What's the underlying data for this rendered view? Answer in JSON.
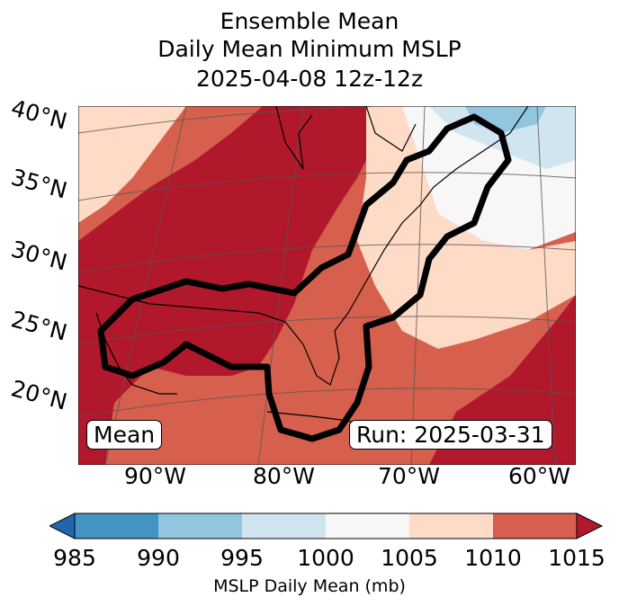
{
  "title": {
    "line1": "Ensemble Mean",
    "line2": "Daily Mean Minimum MSLP",
    "line3": "2025-04-08 12z-12z"
  },
  "map": {
    "lat_labels": [
      "40°N",
      "35°N",
      "30°N",
      "25°N",
      "20°N"
    ],
    "lon_labels": [
      "90°W",
      "80°W",
      "70°W",
      "60°W"
    ],
    "mean_label": "Mean",
    "run_label": "Run: 2025-03-31"
  },
  "colorbar": {
    "ticks": [
      "985",
      "990",
      "995",
      "1000",
      "1005",
      "1010",
      "1015"
    ],
    "label": "MSLP Daily Mean (mb)",
    "colors": [
      "#2166ac",
      "#4393c3",
      "#92c5de",
      "#d1e5f0",
      "#f7f7f7",
      "#fddbc7",
      "#d6604d",
      "#b2182b"
    ]
  }
}
